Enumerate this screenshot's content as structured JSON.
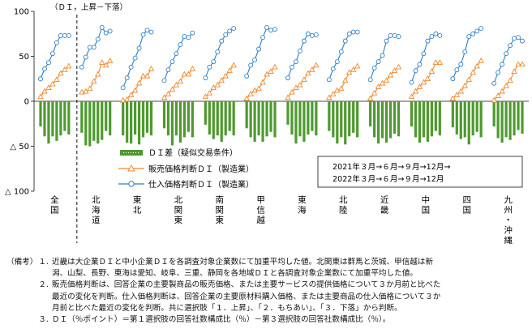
{
  "chart_data": {
    "type": "bar+line",
    "unit_label": "（ＤＩ，上昇－下落）",
    "ylim": [
      -100,
      100
    ],
    "y_ticks": [
      {
        "value": 100,
        "label": "100"
      },
      {
        "value": 50,
        "label": "50"
      },
      {
        "value": 0,
        "label": "0"
      },
      {
        "value": -50,
        "label": "△ 50"
      },
      {
        "value": -100,
        "label": "△ 100"
      }
    ],
    "regions": [
      {
        "label": "全国",
        "di": [
          -28,
          -39,
          -47,
          -39,
          -44,
          -38,
          -33,
          -37
        ],
        "sales_price": [
          5,
          11,
          15,
          19,
          24,
          31,
          35,
          39
        ],
        "input_price": [
          25,
          36,
          43,
          53,
          65,
          73,
          73,
          73
        ]
      },
      {
        "label": "北海道",
        "di": [
          -35,
          -49,
          -50,
          -44,
          -47,
          -43,
          -33,
          -38
        ],
        "sales_price": [
          10,
          11,
          14,
          22,
          30,
          43,
          40,
          45
        ],
        "input_price": [
          38,
          49,
          60,
          60,
          69,
          82,
          76,
          78
        ]
      },
      {
        "label": "東北",
        "di": [
          -38,
          -46,
          -47,
          -37,
          -48,
          -40,
          -35,
          -38
        ],
        "sales_price": [
          1,
          2,
          7,
          12,
          20,
          28,
          28,
          36
        ],
        "input_price": [
          15,
          26,
          38,
          48,
          59,
          74,
          79,
          77
        ]
      },
      {
        "label": "北関東",
        "di": [
          -30,
          -38,
          -49,
          -38,
          -46,
          -40,
          -34,
          -40
        ],
        "sales_price": [
          4,
          8,
          13,
          18,
          22,
          30,
          30,
          36
        ],
        "input_price": [
          23,
          35,
          44,
          53,
          63,
          72,
          71,
          76
        ]
      },
      {
        "label": "南関東",
        "di": [
          -26,
          -37,
          -42,
          -38,
          -45,
          -38,
          -33,
          -38
        ],
        "sales_price": [
          5,
          9,
          15,
          18,
          23,
          28,
          34,
          40
        ],
        "input_price": [
          26,
          38,
          44,
          55,
          67,
          74,
          78,
          81
        ]
      },
      {
        "label": "甲信越",
        "di": [
          -30,
          -40,
          -45,
          -38,
          -45,
          -39,
          -34,
          -40
        ],
        "sales_price": [
          3,
          8,
          12,
          14,
          21,
          30,
          33,
          38
        ],
        "input_price": [
          28,
          40,
          46,
          58,
          71,
          82,
          79,
          80
        ]
      },
      {
        "label": "東海",
        "di": [
          -26,
          -37,
          -47,
          -39,
          -45,
          -37,
          -33,
          -38
        ],
        "sales_price": [
          4,
          10,
          15,
          18,
          24,
          31,
          35,
          40
        ],
        "input_price": [
          26,
          38,
          44,
          56,
          67,
          75,
          73,
          74
        ]
      },
      {
        "label": "北陸",
        "di": [
          -33,
          -40,
          -47,
          -40,
          -48,
          -39,
          -35,
          -40
        ],
        "sales_price": [
          4,
          8,
          12,
          14,
          23,
          32,
          35,
          39
        ],
        "input_price": [
          24,
          36,
          44,
          55,
          67,
          75,
          77,
          77
        ]
      },
      {
        "label": "近畿",
        "di": [
          -28,
          -40,
          -47,
          -41,
          -46,
          -41,
          -36,
          -39
        ],
        "sales_price": [
          3,
          9,
          16,
          20,
          23,
          29,
          34,
          38
        ],
        "input_price": [
          24,
          37,
          44,
          51,
          67,
          73,
          73,
          72
        ]
      },
      {
        "label": "中国",
        "di": [
          -28,
          -40,
          -46,
          -40,
          -45,
          -39,
          -33,
          -38
        ],
        "sales_price": [
          5,
          11,
          16,
          21,
          25,
          33,
          43,
          43
        ],
        "input_price": [
          21,
          34,
          41,
          53,
          67,
          72,
          75,
          73
        ]
      },
      {
        "label": "四国",
        "di": [
          -29,
          -37,
          -42,
          -40,
          -48,
          -38,
          -34,
          -40
        ],
        "sales_price": [
          3,
          7,
          11,
          17,
          24,
          32,
          39,
          45
        ],
        "input_price": [
          25,
          35,
          41,
          55,
          72,
          75,
          78,
          81
        ]
      },
      {
        "label": "九州・沖縄",
        "di": [
          -28,
          -41,
          -46,
          -40,
          -43,
          -38,
          -32,
          -36
        ],
        "sales_price": [
          1,
          6,
          11,
          17,
          23,
          33,
          41,
          41
        ],
        "input_price": [
          20,
          32,
          41,
          53,
          62,
          70,
          71,
          67
        ]
      }
    ],
    "legend": {
      "di": "ＤＩ差（疑似交易条件）",
      "sales_price": "販売価格判断ＤＩ（製造業）",
      "input_price": "仕入価格判断ＤＩ（製造業）"
    },
    "period_note": [
      "2021年３月→６月→９月→12月→",
      "2022年３月→６月→９月→12月"
    ],
    "colors": {
      "di": "#4e9a2f",
      "sales_price": "#ef8a2e",
      "input_price": "#2f7fc7"
    }
  },
  "notes": {
    "lead": "（備考）",
    "items": [
      {
        "num": "１.",
        "lines": [
          "近畿は大企業ＤＩと中小企業ＤＩを各調査対象企業数にて加重平均した値。北関東は群馬と茨城、甲信越は新",
          "潟、山梨、長野、東海は愛知、岐阜、三重、静岡を各地域ＤＩと各調査対象企業数にて加重平均した値。"
        ]
      },
      {
        "num": "２.",
        "lines": [
          "販売価格判断は、回答企業の主要製商品の販売価格、または主要サービスの提供価格について３か月前と比べた",
          "最近の変化を判断。仕入価格判断は、回答企業の主要原材料購入価格、または主要商品の仕入価格について３か",
          "月前と比べた最近の変化を判断。共に選択肢「１．上昇」、「２．もちあい」、「３．下落」から判断。"
        ]
      },
      {
        "num": "３.",
        "lines": [
          "ＤＩ（％ポイント）＝第１選択肢の回答社数構成比（％）－第３選択肢の回答社数構成比（％）。"
        ]
      }
    ]
  }
}
